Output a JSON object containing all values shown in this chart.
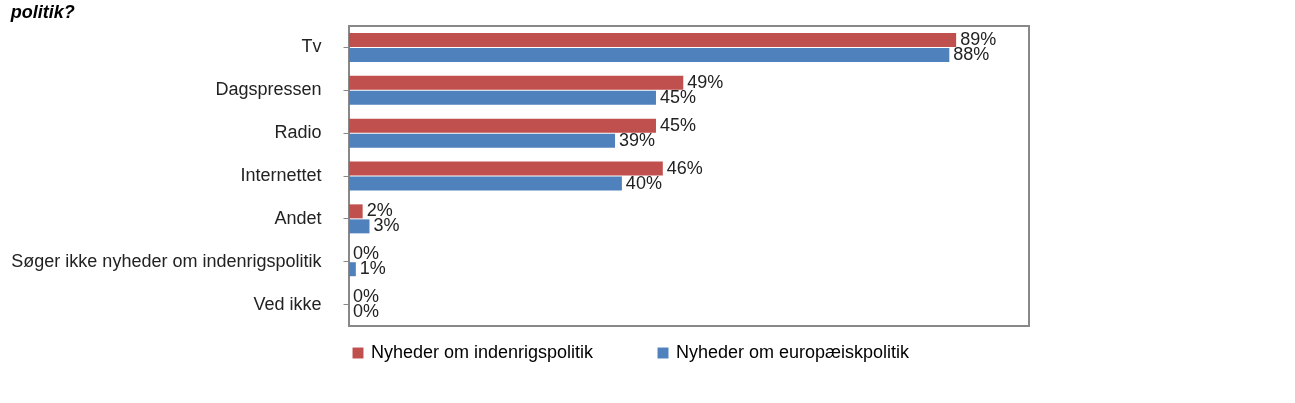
{
  "chart_data": {
    "type": "bar",
    "orientation": "horizontal",
    "title": "politik?",
    "categories": [
      "Tv",
      "Dagspressen",
      "Radio",
      "Internettet",
      "Andet",
      "Søger ikke nyheder om indenrigspolitik",
      "Ved ikke"
    ],
    "series": [
      {
        "name": "Nyheder om indenrigspolitik",
        "color": "#c0504d",
        "values": [
          89,
          49,
          45,
          46,
          2,
          0,
          0
        ],
        "value_labels": [
          "89%",
          "49%",
          "45%",
          "46%",
          "2%",
          "0%",
          "0%"
        ]
      },
      {
        "name": "Nyheder om europæiskpolitik",
        "color": "#4f81bd",
        "values": [
          88,
          45,
          39,
          40,
          3,
          1,
          0
        ],
        "value_labels": [
          "88%",
          "45%",
          "39%",
          "40%",
          "3%",
          "1%",
          "0%"
        ]
      }
    ],
    "legend": "bottom",
    "grid": false
  }
}
